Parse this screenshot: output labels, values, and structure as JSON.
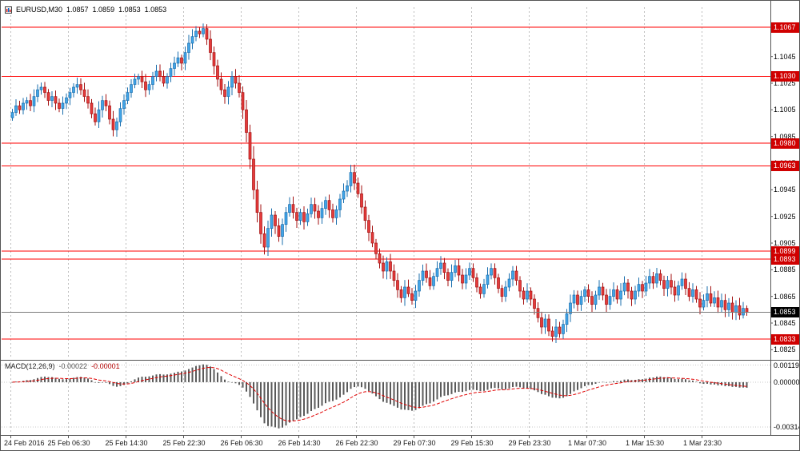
{
  "header": {
    "symbol": "EURUSD,M30",
    "open": "1.0857",
    "high": "1.0859",
    "low": "1.0853",
    "close": "1.0853"
  },
  "indicator_header": {
    "name": "MACD(12,26,9)",
    "main_value": "-0.00022",
    "signal_value": "-0.00001"
  },
  "colors": {
    "bull": "#42a5e8",
    "bull_border": "#1b6fae",
    "bear": "#e53b3b",
    "bear_border": "#a31212",
    "hline": "#ff0000",
    "label_box": "#d00000",
    "current_line": "#7a7a7a",
    "current_box": "#000000",
    "grid": "#c0c0c0",
    "frame": "#555555",
    "macd_bar": "#5a5a5a",
    "macd_signal": "#e00000",
    "background": "#ffffff"
  },
  "chart_data": {
    "type": "candlestick",
    "symbol": "EURUSD",
    "timeframe": "M30",
    "title": "EURUSD,M30",
    "price_scale": {
      "max": 1.1082,
      "min": 1.0818
    },
    "price_axis_ticks": [
      1.1065,
      1.1045,
      1.1025,
      1.1005,
      1.0985,
      1.0965,
      1.0945,
      1.0925,
      1.0905,
      1.0885,
      1.0865,
      1.0845,
      1.0825
    ],
    "horizontal_lines": [
      1.1067,
      1.103,
      1.098,
      1.0963,
      1.0899,
      1.0893,
      1.0833
    ],
    "current_price": 1.0853,
    "x_tick_labels": [
      "24 Feb 2016",
      "25 Feb 06:30",
      "25 Feb 14:30",
      "25 Feb 22:30",
      "26 Feb 06:30",
      "26 Feb 14:30",
      "26 Feb 22:30",
      "29 Feb 07:30",
      "29 Feb 15:30",
      "29 Feb 23:30",
      "1 Mar 07:30",
      "1 Mar 15:30",
      "1 Mar 23:30"
    ],
    "bars_per_tick": 16,
    "first_open": 1.0999,
    "closes": [
      1.1003,
      1.1008,
      1.1005,
      1.101,
      1.1012,
      1.1008,
      1.1015,
      1.102,
      1.1022,
      1.1018,
      1.1012,
      1.1015,
      1.101,
      1.1006,
      1.101,
      1.1014,
      1.1018,
      1.1022,
      1.1024,
      1.102,
      1.1015,
      1.101,
      1.1002,
      1.0996,
      1.1005,
      1.1012,
      1.1008,
      1.0998,
      1.099,
      1.0996,
      1.1006,
      1.1012,
      1.1018,
      1.1024,
      1.1028,
      1.103,
      1.1026,
      1.102,
      1.1024,
      1.103,
      1.1034,
      1.103,
      1.1025,
      1.103,
      1.1036,
      1.104,
      1.1044,
      1.104,
      1.1048,
      1.1055,
      1.106,
      1.1064,
      1.1062,
      1.1066,
      1.1058,
      1.1048,
      1.1038,
      1.1028,
      1.102,
      1.1015,
      1.1022,
      1.103,
      1.1025,
      1.1018,
      1.1005,
      1.0988,
      1.0968,
      1.0945,
      1.0928,
      1.0912,
      1.0902,
      1.0916,
      1.0926,
      1.0918,
      1.091,
      1.0919,
      1.0928,
      1.0934,
      1.0928,
      1.0922,
      1.0928,
      1.0921,
      1.0927,
      1.0934,
      1.0929,
      1.0924,
      1.0931,
      1.0937,
      1.093,
      1.0924,
      1.093,
      1.0938,
      1.0944,
      1.0948,
      1.0958,
      1.095,
      1.0942,
      1.0932,
      1.0922,
      1.0913,
      1.0905,
      1.0897,
      1.089,
      1.0884,
      1.0891,
      1.0884,
      1.0877,
      1.087,
      1.0864,
      1.0872,
      1.0867,
      1.0862,
      1.0869,
      1.0877,
      1.0884,
      1.0879,
      1.0873,
      1.088,
      1.0886,
      1.089,
      1.0883,
      1.0877,
      1.0883,
      1.0888,
      1.0881,
      1.0875,
      1.0881,
      1.0886,
      1.0879,
      1.0872,
      1.0867,
      1.0874,
      1.0881,
      1.0886,
      1.0879,
      1.0871,
      1.0865,
      1.0872,
      1.0878,
      1.0884,
      1.0877,
      1.0869,
      1.0863,
      1.0869,
      1.0863,
      1.0856,
      1.0849,
      1.0842,
      1.0848,
      1.0839,
      1.0835,
      1.0842,
      1.0837,
      1.0844,
      1.0852,
      1.086,
      1.0866,
      1.0859,
      1.0865,
      1.087,
      1.0865,
      1.0859,
      1.0866,
      1.0872,
      1.0866,
      1.0859,
      1.0865,
      1.087,
      1.0863,
      1.0869,
      1.0875,
      1.0869,
      1.0863,
      1.0869,
      1.0874,
      1.0869,
      1.0875,
      1.088,
      1.0875,
      1.0882,
      1.0877,
      1.0871,
      1.0877,
      1.0872,
      1.0866,
      1.0873,
      1.0878,
      1.0871,
      1.0865,
      1.087,
      1.0863,
      1.0857,
      1.0862,
      1.0867,
      1.086,
      1.0864,
      1.0857,
      1.0862,
      1.0855,
      1.086,
      1.0853,
      1.0858,
      1.0851,
      1.0856,
      1.0853
    ],
    "indicator": {
      "type": "macd",
      "label": "MACD(12,26,9)",
      "fast": 12,
      "slow": 26,
      "signal": 9,
      "last_main": -0.00022,
      "last_signal": -1e-05,
      "axis_ticks": [
        0.00119,
        0,
        -0.00314
      ],
      "scale_max": 0.0014,
      "scale_min": -0.0036
    }
  }
}
